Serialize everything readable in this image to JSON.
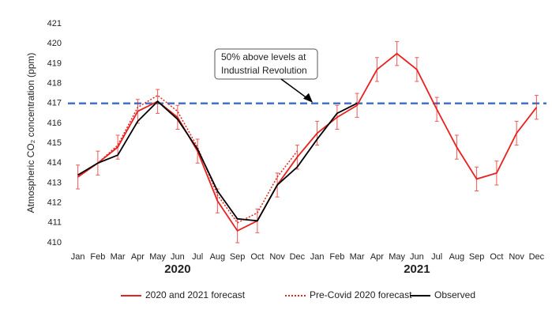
{
  "chart_data": {
    "type": "line",
    "y_label": "Atmospheric CO₂ concentration (ppm)",
    "categories": [
      "Jan",
      "Feb",
      "Mar",
      "Apr",
      "May",
      "Jun",
      "Jul",
      "Aug",
      "Sep",
      "Oct",
      "Nov",
      "Dec",
      "Jan",
      "Feb",
      "Mar",
      "Apr",
      "May",
      "Jun",
      "Jul",
      "Aug",
      "Sep",
      "Oct",
      "Nov",
      "Dec"
    ],
    "groups": [
      "2020",
      "2021"
    ],
    "ylim": [
      410,
      421
    ],
    "yticks": [
      410,
      411,
      412,
      413,
      414,
      415,
      416,
      417,
      418,
      419,
      420,
      421
    ],
    "reference_line": {
      "value": 417,
      "color": "#4472c4"
    },
    "annotation": [
      "50% above levels at",
      "Industrial Revolution"
    ],
    "series": [
      {
        "name": "2020 and 2021 forecast",
        "color": "#e8201e",
        "style": "solid",
        "values": [
          413.3,
          414.0,
          414.8,
          416.6,
          417.1,
          416.3,
          414.6,
          412.1,
          410.6,
          411.1,
          412.9,
          414.3,
          415.5,
          416.3,
          416.9,
          418.7,
          419.5,
          418.7,
          416.7,
          414.8,
          413.2,
          413.5,
          415.5,
          416.8
        ],
        "errors": [
          0.6,
          0.6,
          0.6,
          0.6,
          0.6,
          0.6,
          0.6,
          0.6,
          0.6,
          0.6,
          0.6,
          0.6,
          0.6,
          0.6,
          0.6,
          0.6,
          0.6,
          0.6,
          0.6,
          0.6,
          0.6,
          0.6,
          0.6,
          0.6
        ]
      },
      {
        "name": "Pre-Covid 2020 forecast",
        "color": "#e8201e",
        "style": "dotted",
        "values": [
          413.4,
          414.0,
          414.9,
          416.8,
          417.4,
          416.6,
          414.8,
          412.4,
          411.0,
          411.5,
          413.3,
          414.6,
          null,
          null,
          null,
          null,
          null,
          null,
          null,
          null,
          null,
          null,
          null,
          null
        ]
      },
      {
        "name": "Observed",
        "color": "#000000",
        "style": "solid",
        "values": [
          413.4,
          414.0,
          414.4,
          416.1,
          417.1,
          416.2,
          414.7,
          412.6,
          411.2,
          411.1,
          412.9,
          413.8,
          415.2,
          416.5,
          417.0,
          null,
          null,
          null,
          null,
          null,
          null,
          null,
          null,
          null
        ]
      }
    ]
  }
}
